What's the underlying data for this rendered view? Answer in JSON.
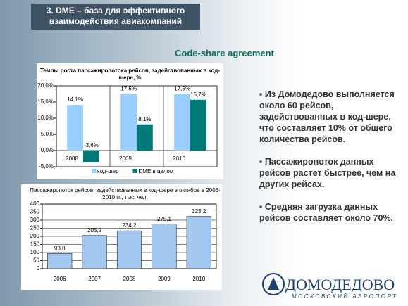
{
  "header": {
    "lines": [
      "3. DME – база для эффективного",
      "взаимодействия авиакомпаний"
    ]
  },
  "subtitle": "Code-share agreement",
  "bullets": [
    "Из Домодедово выполняется около 60 рейсов, задействованных в код-шере, что составляет 10% от общего количества рейсов.",
    "Пассажиропоток данных рейсов растет быстрее, чем на других рейсах.",
    "Средняя загрузка данных рейсов составляет около 70%."
  ],
  "logo": {
    "name": "ДОМОДЕДОВО",
    "caption": "МОСКОВСКИЙ АЭРОПОРТ"
  },
  "chart_data": [
    {
      "type": "bar",
      "title": "Темпы роста пассажиропотока рейсов, задействованных в код-шере, %",
      "categories": [
        "2008",
        "2009",
        "2010"
      ],
      "series": [
        {
          "name": "код-шер",
          "color": "#99ccff",
          "values": [
            14.1,
            17.5,
            17.5
          ],
          "value_labels": [
            "14,1%",
            "17,5%",
            "17,5%"
          ]
        },
        {
          "name": "DME в целом",
          "color": "#007a78",
          "values": [
            -3.6,
            8.1,
            15.7
          ],
          "value_labels": [
            "-3,6%",
            "8,1%",
            "15,7%"
          ]
        }
      ],
      "ylim": [
        -5,
        20
      ],
      "yticks": [
        {
          "value": -5,
          "label": "-5,0%"
        },
        {
          "value": 0,
          "label": "0,0%"
        },
        {
          "value": 5,
          "label": "5,0%"
        },
        {
          "value": 10,
          "label": "10,0%"
        },
        {
          "value": 15,
          "label": "15,0%"
        },
        {
          "value": 20,
          "label": "20,0%"
        }
      ],
      "grid": false,
      "legend": "bottom"
    },
    {
      "type": "bar",
      "title": "Пассажиропоток рейсов, задействованных в код-шере в октябре в 2006-2010 гг., тыс. чел.",
      "categories": [
        "2006",
        "2007",
        "2008",
        "2009",
        "2010"
      ],
      "values": [
        93.8,
        205.2,
        234.2,
        275.1,
        323.2
      ],
      "value_labels": [
        "93,8",
        "205,2",
        "234,2",
        "275,1",
        "323,2"
      ],
      "color": "#a3c8f0",
      "ylim": [
        0,
        400
      ],
      "yticks": [
        0,
        50,
        100,
        150,
        200,
        250,
        300,
        350,
        400
      ],
      "grid": true
    }
  ]
}
